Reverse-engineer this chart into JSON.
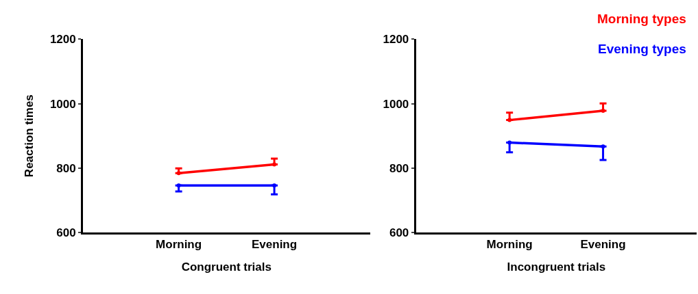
{
  "chart_data": [
    {
      "type": "line",
      "categories": [
        "Morning",
        "Evening"
      ],
      "xlabel": "Congruent trials",
      "ylabel": "Reaction times",
      "ylim": [
        600,
        1200
      ],
      "yticks": [
        600,
        800,
        1000,
        1200
      ],
      "legend": false,
      "marker": "circle",
      "line_style": "solid",
      "series": [
        {
          "color": "#ff0000",
          "values": [
            784,
            811
          ],
          "errors": [
            [
              784,
              799
            ],
            [
              811,
              829
            ]
          ]
        },
        {
          "color": "#0000ff",
          "values": [
            746,
            746
          ],
          "errors": [
            [
              727,
              746
            ],
            [
              718,
              746
            ]
          ]
        }
      ]
    },
    {
      "type": "line",
      "categories": [
        "Morning",
        "Evening"
      ],
      "xlabel": "Incongruent trials",
      "ylim": [
        600,
        1200
      ],
      "yticks": [
        600,
        800,
        1000,
        1200
      ],
      "legend": "top right",
      "marker": "circle",
      "line_style": "solid",
      "series": [
        {
          "name": "Morning types",
          "color": "#ff0000",
          "values": [
            949,
            978
          ],
          "errors": [
            [
              949,
              972
            ],
            [
              978,
              1001
            ]
          ]
        },
        {
          "name": "Evening types",
          "color": "#0000ff",
          "values": [
            879,
            867
          ],
          "errors": [
            [
              849,
              879
            ],
            [
              825,
              867
            ]
          ]
        }
      ]
    }
  ]
}
